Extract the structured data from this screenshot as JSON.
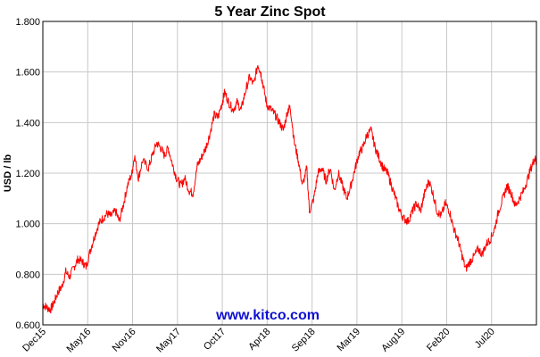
{
  "chart_data": {
    "type": "line",
    "title": "5 Year Zinc Spot",
    "ylabel": "USD / lb",
    "xlabel": "",
    "watermark": "www.kitco.com",
    "ylim": [
      0.6,
      1.8
    ],
    "yticks": [
      "0.600",
      "0.800",
      "1.000",
      "1.200",
      "1.400",
      "1.600",
      "1.800"
    ],
    "xticks": [
      "Dec15",
      "May16",
      "Nov16",
      "May17",
      "Oct17",
      "Apr18",
      "Sep18",
      "Mar19",
      "Aug19",
      "Feb20",
      "Jul20"
    ],
    "xlim": [
      "2015-12-07",
      "2020-12-07"
    ],
    "grid": true,
    "series_color": "#ff0000",
    "series": [
      {
        "values": [
          [
            "2015-12-07",
            0.68
          ],
          [
            "2015-12-21",
            0.67
          ],
          [
            "2016-01-04",
            0.66
          ],
          [
            "2016-01-18",
            0.69
          ],
          [
            "2016-02-01",
            0.73
          ],
          [
            "2016-02-15",
            0.75
          ],
          [
            "2016-03-01",
            0.81
          ],
          [
            "2016-03-15",
            0.79
          ],
          [
            "2016-04-01",
            0.83
          ],
          [
            "2016-04-15",
            0.86
          ],
          [
            "2016-05-01",
            0.85
          ],
          [
            "2016-05-15",
            0.83
          ],
          [
            "2016-06-01",
            0.9
          ],
          [
            "2016-06-15",
            0.95
          ],
          [
            "2016-07-01",
            1.0
          ],
          [
            "2016-07-15",
            1.02
          ],
          [
            "2016-08-01",
            1.04
          ],
          [
            "2016-08-15",
            1.03
          ],
          [
            "2016-09-01",
            1.05
          ],
          [
            "2016-09-15",
            1.01
          ],
          [
            "2016-10-01",
            1.08
          ],
          [
            "2016-10-15",
            1.15
          ],
          [
            "2016-11-01",
            1.2
          ],
          [
            "2016-11-10",
            1.27
          ],
          [
            "2016-11-25",
            1.18
          ],
          [
            "2016-12-10",
            1.25
          ],
          [
            "2017-01-01",
            1.22
          ],
          [
            "2017-01-15",
            1.27
          ],
          [
            "2017-02-01",
            1.32
          ],
          [
            "2017-02-15",
            1.3
          ],
          [
            "2017-03-01",
            1.27
          ],
          [
            "2017-03-15",
            1.3
          ],
          [
            "2017-04-01",
            1.23
          ],
          [
            "2017-04-15",
            1.18
          ],
          [
            "2017-05-01",
            1.15
          ],
          [
            "2017-05-15",
            1.18
          ],
          [
            "2017-06-01",
            1.13
          ],
          [
            "2017-06-15",
            1.12
          ],
          [
            "2017-07-01",
            1.23
          ],
          [
            "2017-07-15",
            1.26
          ],
          [
            "2017-08-01",
            1.3
          ],
          [
            "2017-08-15",
            1.35
          ],
          [
            "2017-09-01",
            1.43
          ],
          [
            "2017-09-15",
            1.42
          ],
          [
            "2017-10-01",
            1.48
          ],
          [
            "2017-10-10",
            1.52
          ],
          [
            "2017-10-25",
            1.48
          ],
          [
            "2017-11-10",
            1.45
          ],
          [
            "2017-11-25",
            1.48
          ],
          [
            "2017-12-10",
            1.45
          ],
          [
            "2017-12-25",
            1.52
          ],
          [
            "2018-01-10",
            1.58
          ],
          [
            "2018-01-25",
            1.55
          ],
          [
            "2018-02-10",
            1.63
          ],
          [
            "2018-02-20",
            1.6
          ],
          [
            "2018-03-01",
            1.55
          ],
          [
            "2018-03-15",
            1.47
          ],
          [
            "2018-04-01",
            1.45
          ],
          [
            "2018-04-15",
            1.43
          ],
          [
            "2018-05-01",
            1.4
          ],
          [
            "2018-05-15",
            1.37
          ],
          [
            "2018-06-01",
            1.45
          ],
          [
            "2018-06-10",
            1.46
          ],
          [
            "2018-06-25",
            1.32
          ],
          [
            "2018-07-10",
            1.25
          ],
          [
            "2018-07-25",
            1.15
          ],
          [
            "2018-08-10",
            1.22
          ],
          [
            "2018-08-20",
            1.05
          ],
          [
            "2018-09-05",
            1.1
          ],
          [
            "2018-09-20",
            1.2
          ],
          [
            "2018-10-05",
            1.22
          ],
          [
            "2018-10-20",
            1.17
          ],
          [
            "2018-11-05",
            1.22
          ],
          [
            "2018-11-20",
            1.13
          ],
          [
            "2018-12-05",
            1.2
          ],
          [
            "2018-12-20",
            1.15
          ],
          [
            "2019-01-05",
            1.1
          ],
          [
            "2019-01-20",
            1.15
          ],
          [
            "2019-02-05",
            1.22
          ],
          [
            "2019-02-20",
            1.28
          ],
          [
            "2019-03-05",
            1.3
          ],
          [
            "2019-03-20",
            1.35
          ],
          [
            "2019-04-05",
            1.37
          ],
          [
            "2019-04-20",
            1.3
          ],
          [
            "2019-05-05",
            1.26
          ],
          [
            "2019-05-20",
            1.22
          ],
          [
            "2019-06-05",
            1.2
          ],
          [
            "2019-06-20",
            1.15
          ],
          [
            "2019-07-05",
            1.1
          ],
          [
            "2019-07-20",
            1.05
          ],
          [
            "2019-08-05",
            1.02
          ],
          [
            "2019-08-20",
            1.01
          ],
          [
            "2019-09-05",
            1.05
          ],
          [
            "2019-09-20",
            1.08
          ],
          [
            "2019-10-05",
            1.05
          ],
          [
            "2019-10-20",
            1.12
          ],
          [
            "2019-11-05",
            1.17
          ],
          [
            "2019-11-20",
            1.12
          ],
          [
            "2019-12-05",
            1.05
          ],
          [
            "2019-12-20",
            1.03
          ],
          [
            "2020-01-05",
            1.08
          ],
          [
            "2020-01-20",
            1.05
          ],
          [
            "2020-02-05",
            0.98
          ],
          [
            "2020-02-20",
            0.94
          ],
          [
            "2020-03-05",
            0.88
          ],
          [
            "2020-03-20",
            0.82
          ],
          [
            "2020-04-05",
            0.85
          ],
          [
            "2020-04-20",
            0.87
          ],
          [
            "2020-05-05",
            0.9
          ],
          [
            "2020-05-20",
            0.88
          ],
          [
            "2020-06-05",
            0.92
          ],
          [
            "2020-06-20",
            0.94
          ],
          [
            "2020-07-05",
            0.98
          ],
          [
            "2020-07-20",
            1.05
          ],
          [
            "2020-08-05",
            1.1
          ],
          [
            "2020-08-20",
            1.15
          ],
          [
            "2020-09-05",
            1.12
          ],
          [
            "2020-09-20",
            1.07
          ],
          [
            "2020-10-05",
            1.1
          ],
          [
            "2020-10-20",
            1.13
          ],
          [
            "2020-11-05",
            1.18
          ],
          [
            "2020-11-20",
            1.23
          ],
          [
            "2020-12-01",
            1.26
          ],
          [
            "2020-12-07",
            1.24
          ]
        ]
      }
    ]
  }
}
